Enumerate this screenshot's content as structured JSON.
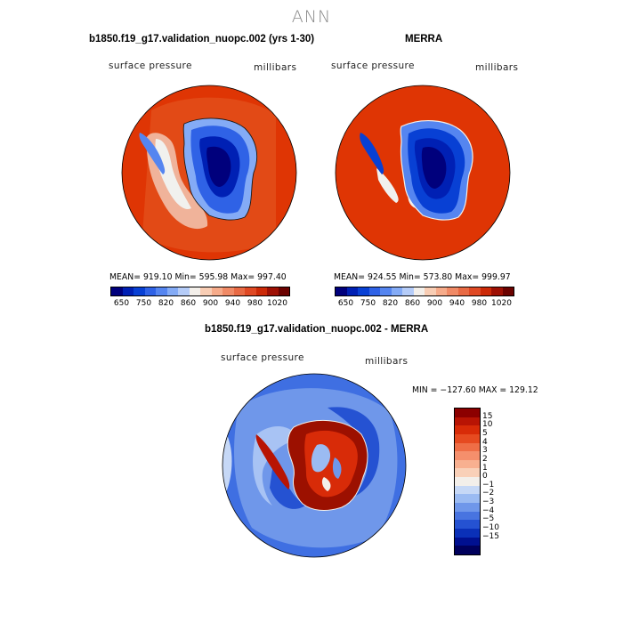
{
  "title": "ANN",
  "panels": {
    "model": {
      "title": "b1850.f19_g17.validation_nuopc.002 (yrs 1-30)",
      "left_label": "surface pressure",
      "right_label": "millibars",
      "stats": "MEAN= 919.10   Min= 595.98   Max= 997.40"
    },
    "obs": {
      "title": "MERRA",
      "left_label": "surface pressure",
      "right_label": "millibars",
      "stats": "MEAN= 924.55   Min= 573.80   Max= 999.97"
    },
    "diff": {
      "title": "b1850.f19_g17.validation_nuopc.002 - MERRA",
      "left_label": "surface pressure",
      "right_label": "millibars",
      "stats": "MIN = −127.60 MAX = 129.12"
    }
  },
  "colorbar_abs": {
    "colors": [
      "#00007c",
      "#0020b4",
      "#0840d4",
      "#2f62e6",
      "#5585f0",
      "#84abf6",
      "#b5ccf8",
      "#f3efea",
      "#f8cdb4",
      "#f6ab8a",
      "#f08a66",
      "#e86a44",
      "#df4924",
      "#cc2a08",
      "#9e1004",
      "#6b0200"
    ],
    "tick_labels": [
      "650",
      "750",
      "820",
      "860",
      "900",
      "940",
      "980",
      "1020"
    ]
  },
  "colorbar_diff": {
    "colors": [
      "#8c0000",
      "#b81404",
      "#d82b08",
      "#e64a20",
      "#ef6e46",
      "#f58f6c",
      "#f8b090",
      "#f9d0b8",
      "#f3efea",
      "#c6d8f6",
      "#9bbbf2",
      "#6f97ea",
      "#4874e0",
      "#2552d2",
      "#0a30b8",
      "#001090",
      "#00005c"
    ],
    "tick_labels": [
      "15",
      "10",
      "5",
      "4",
      "3",
      "2",
      "1",
      "0",
      "−1",
      "−2",
      "−3",
      "−4",
      "−5",
      "−10",
      "−15"
    ]
  },
  "map_colors": {
    "ocean": "#df3504",
    "outer_ring": "#e24a16",
    "ice_edge": "#f1f1ee",
    "coast": "#1a1a1a",
    "diff_ocean_outer": "#3f6fe2",
    "diff_ocean_light": "#a8c3f4",
    "diff_ocean_mid": "#6f97ea",
    "diff_land": "#9c1000"
  }
}
